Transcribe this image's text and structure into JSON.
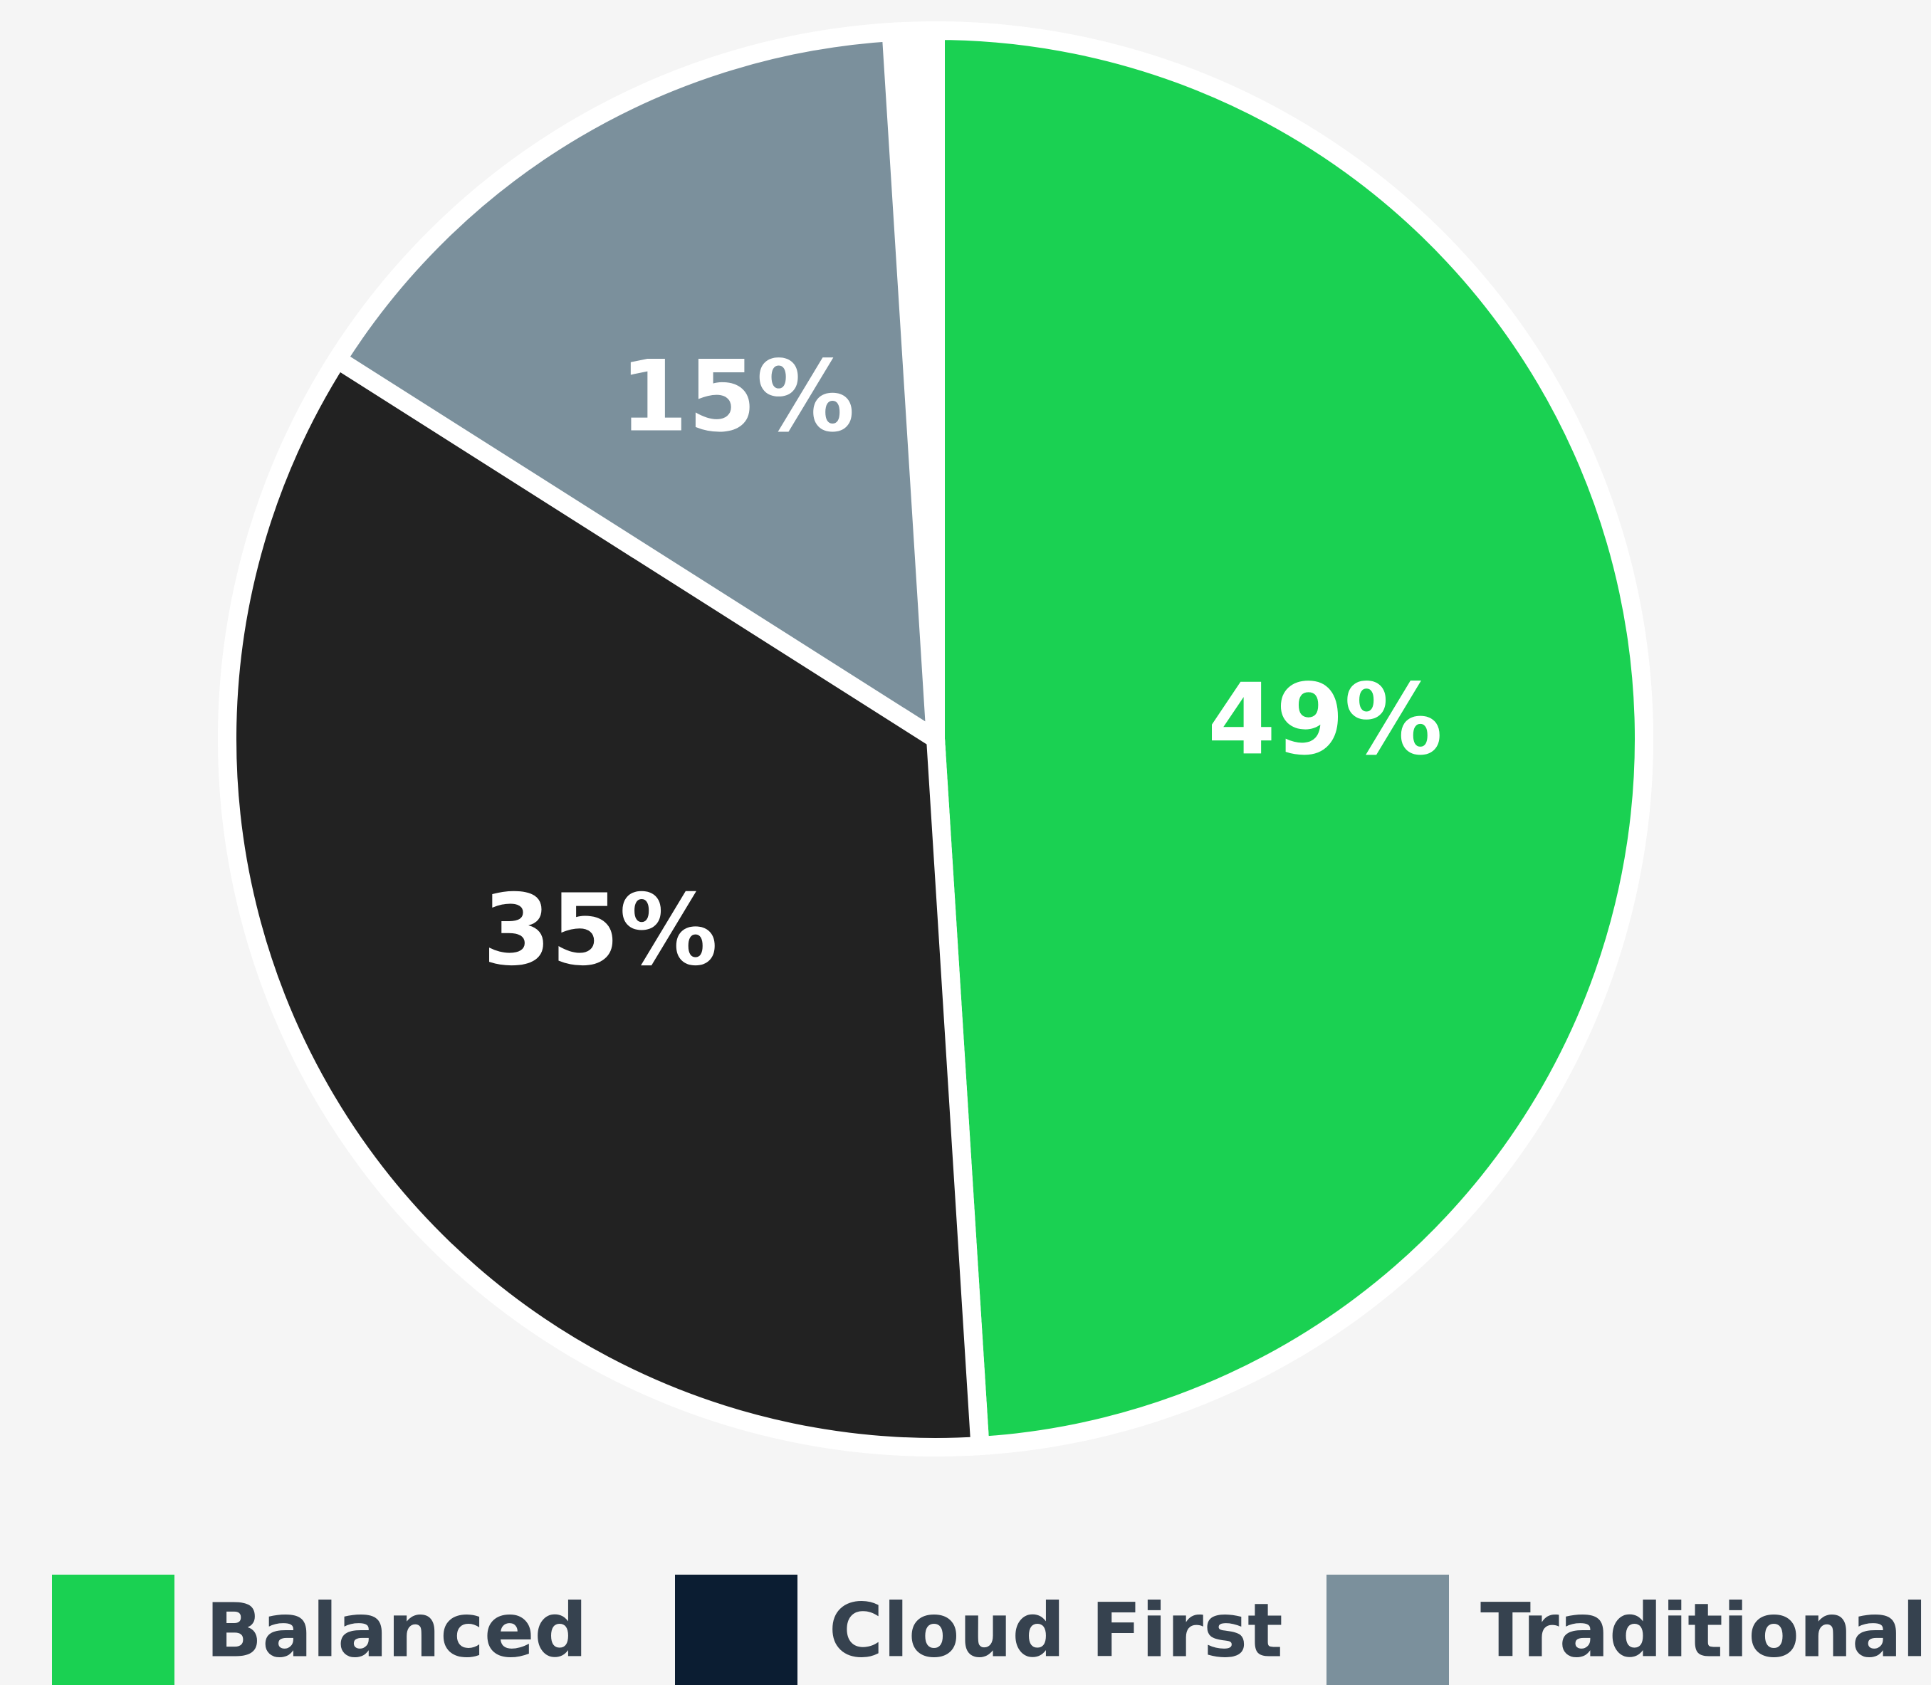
{
  "chart_data": {
    "type": "pie",
    "categories": [
      "Balanced",
      "Cloud First",
      "Traditional"
    ],
    "values": [
      49,
      35,
      15
    ],
    "value_labels": [
      "49%",
      "35%",
      "15%"
    ],
    "colors": [
      "#1ad152",
      "#222222",
      "#7b909c"
    ],
    "legend_colors": [
      "#1ad152",
      "#0b1d32",
      "#7b909c"
    ],
    "legend": "bottom"
  }
}
